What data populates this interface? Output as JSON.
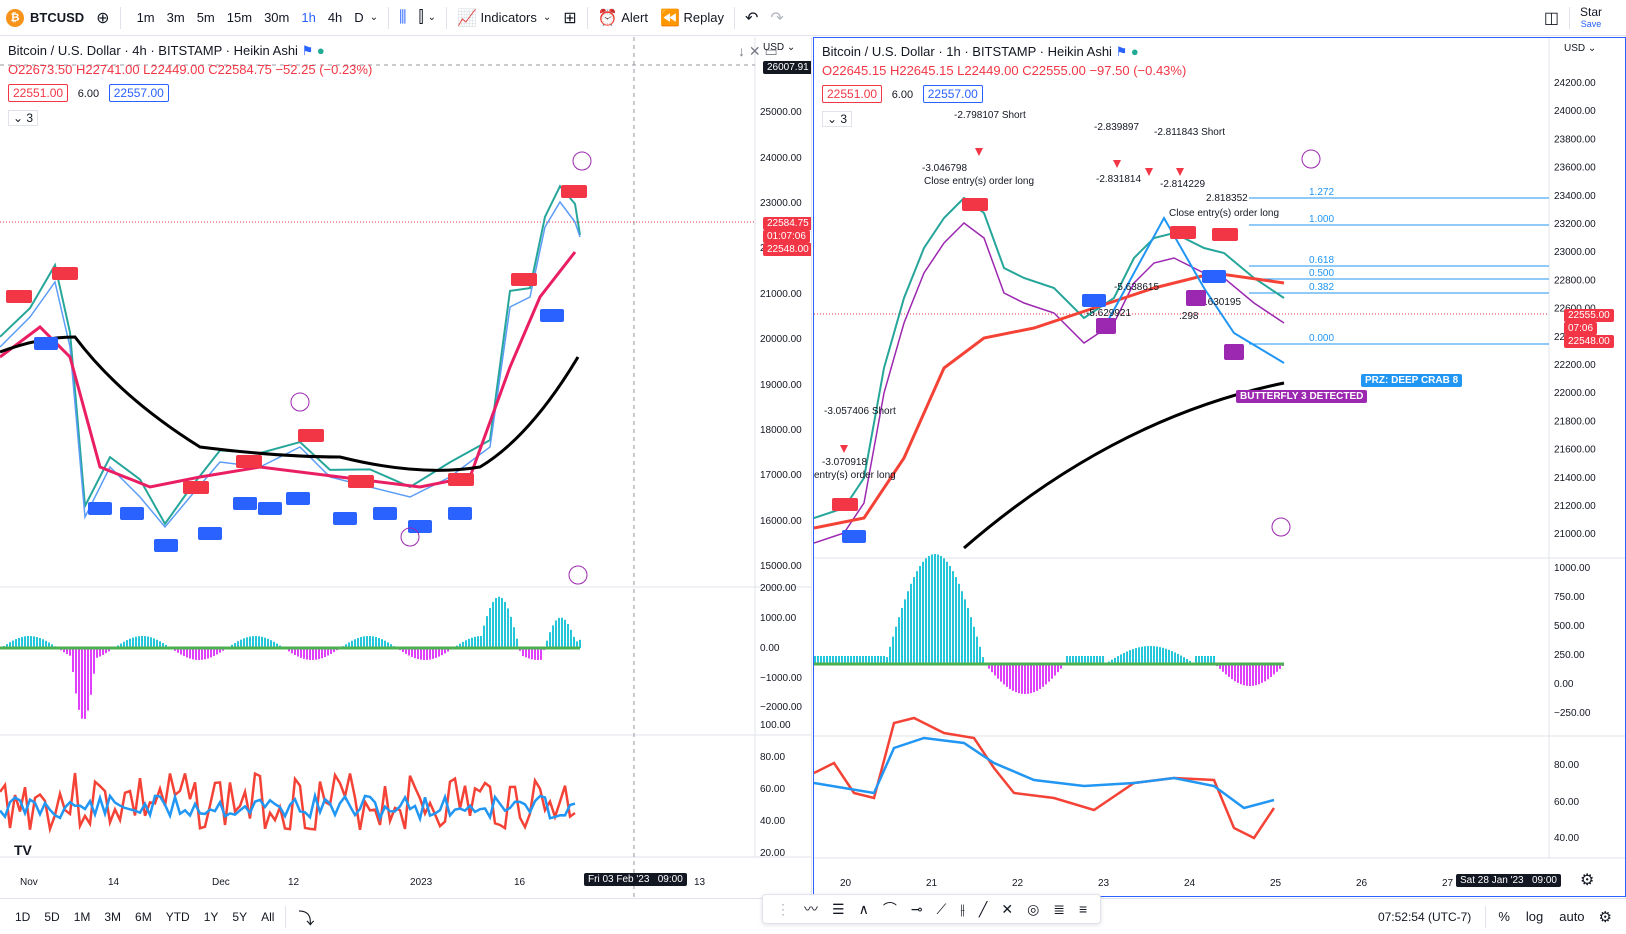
{
  "toolbar": {
    "symbol": "BTCUSD",
    "timeframes": [
      "1m",
      "3m",
      "5m",
      "15m",
      "30m",
      "1h",
      "4h",
      "D"
    ],
    "active_tf": "1h",
    "indicators_label": "Indicators",
    "alert_label": "Alert",
    "replay_label": "Replay",
    "star_label": "Star",
    "save_label": "Save"
  },
  "left_chart": {
    "title": "Bitcoin / U.S. Dollar · 4h · BITSTAMP · Heikin Ashi",
    "ohlc": "O22673.50 H22741.00 L22449.00 C22584.75 −52.25 (−0.23%)",
    "bid": "22551.00",
    "spread": "6.00",
    "ask": "22557.00",
    "collapse": "3",
    "currency": "USD",
    "price_labels": [
      "26007.91",
      "25000.00",
      "24000.00",
      "23000.00",
      "22000.00",
      "21000.00",
      "20000.00",
      "19000.00",
      "18000.00",
      "17000.00",
      "16000.00",
      "15000.00"
    ],
    "current_price": "22584.75",
    "countdown": "01:07:06",
    "last_tag": "22548.00",
    "osc_labels": [
      "2000.00",
      "1000.00",
      "0.00",
      "−1000.00",
      "−2000.00"
    ],
    "rsi_labels": [
      "100.00",
      "80.00",
      "60.00",
      "40.00",
      "20.00"
    ],
    "x_labels": [
      "Nov",
      "14",
      "Dec",
      "12",
      "2023",
      "16",
      "13"
    ],
    "crosshair_date": "Fri 03 Feb '23",
    "crosshair_time": "09:00"
  },
  "right_chart": {
    "title": "Bitcoin / U.S. Dollar · 1h · BITSTAMP · Heikin Ashi",
    "ohlc": "O22645.15 H22645.15 L22449.00 C22555.00 −97.50 (−0.43%)",
    "bid": "22551.00",
    "spread": "6.00",
    "ask": "22557.00",
    "collapse": "3",
    "currency": "USD",
    "price_labels": [
      "24200.00",
      "24000.00",
      "23800.00",
      "23600.00",
      "23400.00",
      "23200.00",
      "23000.00",
      "22800.00",
      "22600.00",
      "22400.00",
      "22200.00",
      "22000.00",
      "21800.00",
      "21600.00",
      "21400.00",
      "21200.00",
      "21000.00"
    ],
    "current_price": "22555.00",
    "countdown": "07:06",
    "last_tag": "22548.00",
    "fib_levels": [
      "1.272",
      "1.000",
      "0.618",
      "0.500",
      "0.382",
      "0.000"
    ],
    "pattern1": "PRZ: DEEP CRAB 8",
    "pattern2": "BUTTERFLY 3 DETECTED",
    "osc_labels": [
      "1000.00",
      "750.00",
      "500.00",
      "250.00",
      "0.00",
      "−250.00"
    ],
    "rsi_labels": [
      "80.00",
      "60.00",
      "40.00"
    ],
    "x_labels": [
      "20",
      "21",
      "22",
      "23",
      "24",
      "25",
      "26",
      "27"
    ],
    "crosshair_date": "Sat 28 Jan '23",
    "crosshair_time": "09:00",
    "annot": [
      "-2.798107 Short",
      "-3.046798",
      "Close entry(s) order long",
      "-3.057406 Short",
      "-3.070918",
      "entry(s) order long",
      "-2.839897",
      "-2.811843 Short",
      "-2.831814",
      "-2.814229",
      "2.818352",
      "Close entry(s) order long",
      "-5.638615",
      "-5.630195",
      "-5.629921",
      ".298"
    ]
  },
  "bottom": {
    "ranges": [
      "1D",
      "5D",
      "1M",
      "3M",
      "6M",
      "YTD",
      "1Y",
      "5Y",
      "All"
    ],
    "clock": "07:52:54 (UTC-7)",
    "pct": "%",
    "log": "log",
    "auto": "auto"
  },
  "colors": {
    "accent": "#2962ff",
    "sell": "#f23645",
    "buy": "#2962ff",
    "ma_black": "#000000",
    "ma_red": "#e91e63"
  }
}
